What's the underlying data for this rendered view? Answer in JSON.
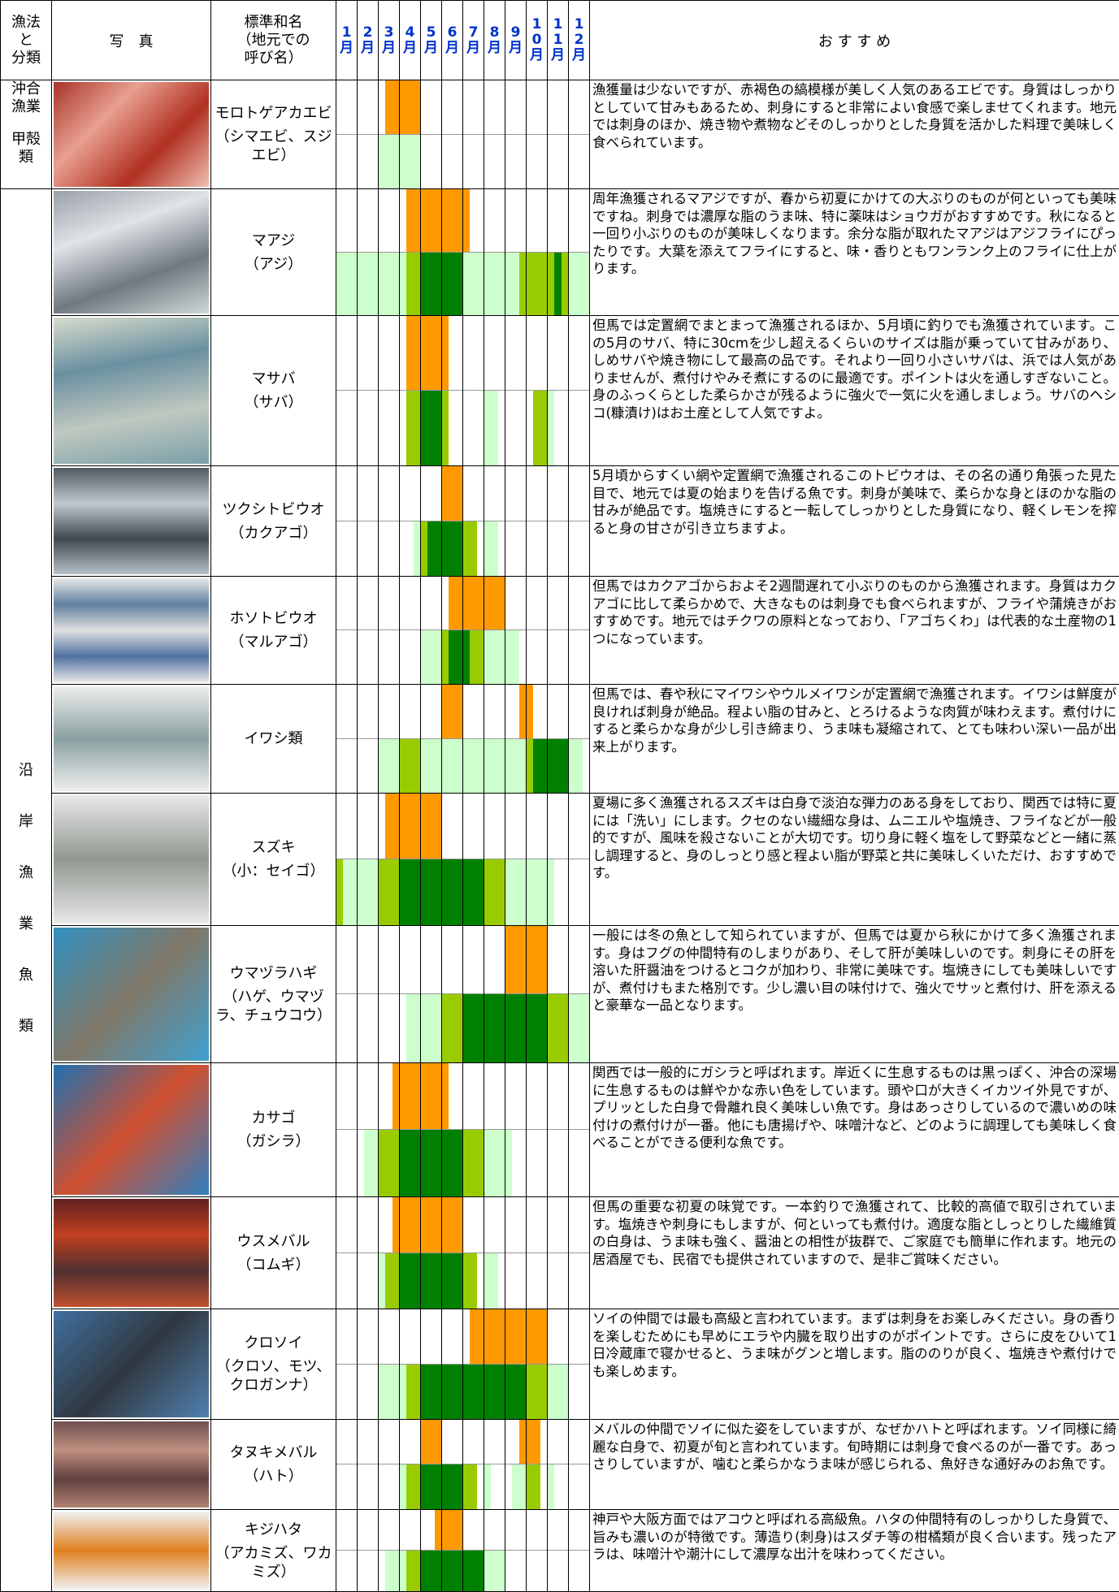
{
  "header": {
    "group": "漁法\nと\n分類",
    "photo": "写　真",
    "name": "標準和名\n（地元での\n呼び名）",
    "months": [
      "1月",
      "2月",
      "3月",
      "4月",
      "5月",
      "6月",
      "7月",
      "8月",
      "9月",
      "10月",
      "11月",
      "12月"
    ],
    "recommend": "お す す め"
  },
  "groups": [
    {
      "method": "沖合漁業",
      "class": "甲殻類"
    },
    {
      "method": "沿岸漁業",
      "class": "魚類"
    }
  ],
  "species": [
    {
      "name": "モロトゲアカエビ",
      "local": "（シマエビ、スジエビ）",
      "text": "漁獲量は少ないですが、赤褐色の縞模様が美しく人気のあるエビです。身質はしっかりとしていて甘みもあるため、刺身にすると非常によい食感で楽しませてくれます。地元では刺身のほか、焼き物や煮物などそのしっかりとした身質を活かした料理で美味しく食べられています。"
    },
    {
      "name": "マアジ",
      "local": "（アジ）",
      "text": "周年漁獲されるマアジですが、春から初夏にかけての大ぶりのものが何といっても美味ですね。刺身では濃厚な脂のうま味、特に薬味はショウガがおすすめです。秋になると一回り小ぶりのものが美味しくなります。余分な脂が取れたマアジはアジフライにぴったりです。大葉を添えてフライにすると、味・香りともワンランク上のフライに仕上がります。"
    },
    {
      "name": "マサバ",
      "local": "（サバ）",
      "text": "但馬では定置網でまとまって漁獲されるほか、5月頃に釣りでも漁獲されています。この5月のサバ、特に30cmを少し超えるくらいのサイズは脂が乗っていて甘みがあり、しめサバや焼き物にして最高の品です。それより一回り小さいサバは、浜では人気がありませんが、煮付けやみそ煮にするのに最適です。ポイントは火を通しすぎないこと。身のふっくらとした柔らかさが残るように強火で一気に火を通しましょう。サバのヘシコ(糠漬け)はお土産として人気ですよ。"
    },
    {
      "name": "ツクシトビウオ",
      "local": "（カクアゴ）",
      "text": "5月頃からすくい網や定置網で漁獲されるこのトビウオは、その名の通り角張った見た目で、地元では夏の始まりを告げる魚です。刺身が美味で、柔らかな身とほのかな脂の甘みが絶品です。塩焼きにすると一転してしっかりとした身質になり、軽くレモンを搾ると身の甘さが引き立ちますよ。"
    },
    {
      "name": "ホソトビウオ",
      "local": "（マルアゴ）",
      "text": "但馬ではカクアゴからおよそ2週間遅れて小ぶりのものから漁獲されます。身質はカクアゴに比して柔らかめで、大きなものは刺身でも食べられますが、フライや蒲焼きがおすすめです。地元ではチクワの原料となっており、「アゴちくわ」は代表的な土産物の1つになっています。"
    },
    {
      "name": "イワシ類",
      "text": "但馬では、春や秋にマイワシやウルメイワシが定置網で漁獲されます。イワシは鮮度が良ければ刺身が絶品。程よい脂の甘みと、とろけるような肉質が味わえます。煮付けにすると柔らかな身が少し引き締まり、うま味も凝縮されて、とても味わい深い一品が出来上がります。"
    },
    {
      "name": "スズキ",
      "local": "（小：セイゴ）",
      "text": "夏場に多く漁獲されるスズキは白身で淡泊な弾力のある身をしており、関西では特に夏には「洗い」にします。クセのない繊細な身は、ムニエルや塩焼き、フライなどが一般的ですが、風味を殺さないことが大切です。切り身に軽く塩をして野菜などと一緒に蒸し調理すると、身のしっとり感と程よい脂が野菜と共に美味しくいただけ、おすすめです。"
    },
    {
      "name": "ウマヅラハギ",
      "local": "（ハゲ、ウマヅラ、チュウコウ）",
      "text": "一般には冬の魚として知られていますが、但馬では夏から秋にかけて多く漁獲されます。身はフグの仲間特有のしまりがあり、そして肝が美味しいのです。刺身にその肝を溶いた肝醤油をつけるとコクが加わり、非常に美味です。塩焼きにしても美味しいですが、煮付けもまた格別です。少し濃い目の味付けで、強火でサッと煮付け、肝を添えると豪華な一品となります。"
    },
    {
      "name": "カサゴ",
      "local": "（ガシラ）",
      "text": "関西では一般的にガシラと呼ばれます。岸近くに生息するものは黒っぽく、沖合の深場に生息するものは鮮やかな赤い色をしています。頭や口が大きくイカツイ外見ですが、プリッとした白身で骨離れ良く美味しい魚です。身はあっさりしているので濃いめの味付けの煮付けが一番。他にも唐揚げや、味噌汁など、どのように調理しても美味しく食べることができる便利な魚です。"
    },
    {
      "name": "ウスメバル",
      "local": "（コムギ）",
      "text": "但馬の重要な初夏の味覚です。一本釣りで漁獲されて、比較的高値で取引されています。塩焼きや刺身にもしますが、何といっても煮付け。適度な脂としっとりした繊維質の白身は、うま味も強く、醤油との相性が抜群で、ご家庭でも簡単に作れます。地元の居酒屋でも、民宿でも提供されていますので、是非ご賞味ください。"
    },
    {
      "name": "クロソイ",
      "local": "（クロソ、モツ、クロガンナ）",
      "text": "ソイの仲間では最も高級と言われています。まずは刺身をお楽しみください。身の香りを楽しむためにも早めにエラや内臓を取り出すのがポイントです。さらに皮をひいて1日冷蔵庫で寝かせると、うま味がグンと増します。脂ののりが良く、塩焼きや煮付けでも楽しめます。"
    },
    {
      "name": "タヌキメバル",
      "local": "（ハト）",
      "text": "メバルの仲間でソイに似た姿をしていますが、なぜかハトと呼ばれます。ソイ同様に綺麗な白身で、初夏が旬と言われています。旬時期には刺身で食べるのが一番です。あっさりしていますが、噛むと柔らかなうま味が感じられる、魚好きな通好みのお魚です。"
    },
    {
      "name": "キジハタ",
      "local": "（アカミズ、ワカミズ）",
      "text": "神戸や大阪方面ではアコウと呼ばれる高級魚。ハタの仲間特有のしっかりした身質で、旨みも濃いのが特徴です。薄造り(刺身)はスダチ等の柑橘類が良く合います。残ったアラは、味噌汁や潮汁にして濃厚な出汁を味わってください。"
    }
  ]
}
